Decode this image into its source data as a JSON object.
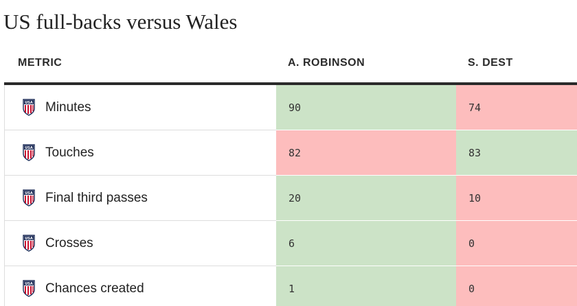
{
  "title": "US full-backs versus Wales",
  "colors": {
    "better": "#cce3c7",
    "worse": "#fdbdbd"
  },
  "table": {
    "headers": {
      "metric": "METRIC",
      "player_a": "A. ROBINSON",
      "player_b": "S. DEST"
    },
    "rows": [
      {
        "icon": "usa-crest-icon",
        "metric": "Minutes",
        "a": "90",
        "b": "74",
        "a_status": "better",
        "b_status": "worse"
      },
      {
        "icon": "usa-crest-icon",
        "metric": "Touches",
        "a": "82",
        "b": "83",
        "a_status": "worse",
        "b_status": "better"
      },
      {
        "icon": "usa-crest-icon",
        "metric": "Final third passes",
        "a": "20",
        "b": "10",
        "a_status": "better",
        "b_status": "worse"
      },
      {
        "icon": "usa-crest-icon",
        "metric": "Crosses",
        "a": "6",
        "b": "0",
        "a_status": "better",
        "b_status": "worse"
      },
      {
        "icon": "usa-crest-icon",
        "metric": "Chances created",
        "a": "1",
        "b": "0",
        "a_status": "better",
        "b_status": "worse"
      }
    ]
  }
}
